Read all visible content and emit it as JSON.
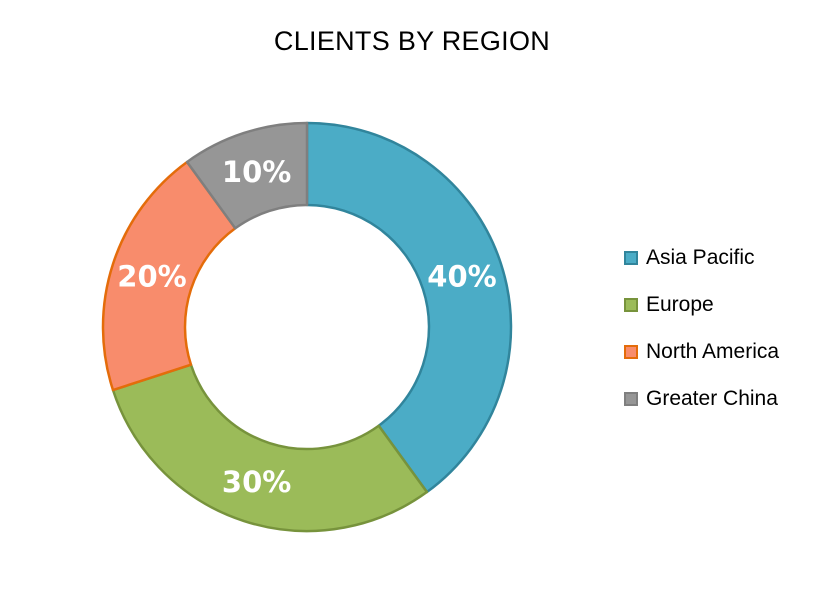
{
  "chart_data": {
    "type": "pie",
    "variant": "donut",
    "title": "CLIENTS BY REGION",
    "categories": [
      "Asia Pacific",
      "Europe",
      "North America",
      "Greater China"
    ],
    "values": [
      40,
      30,
      20,
      10
    ],
    "data_labels": [
      "40%",
      "30%",
      "20%",
      "10%"
    ],
    "colors": [
      "#4BACC6",
      "#9BBB59",
      "#F79646",
      "#969696"
    ],
    "slice_fills": [
      "#4BACC6",
      "#9BBB59",
      "#F88C6C",
      "#969696"
    ],
    "slice_borders": [
      "#31859C",
      "#77933C",
      "#E46C0A",
      "#7F7F7F"
    ],
    "legend_position": "right"
  }
}
